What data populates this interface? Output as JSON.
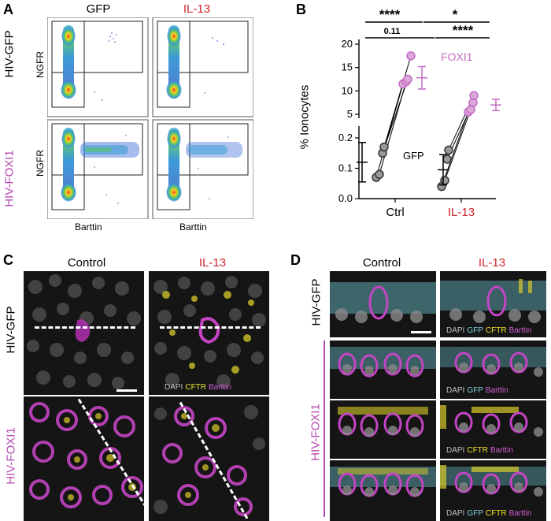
{
  "panels": {
    "A": "A",
    "B": "B",
    "C": "C",
    "D": "D"
  },
  "panel_a": {
    "col_headers": [
      "GFP",
      "IL-13"
    ],
    "row_labels": [
      "HIV-GFP",
      "HIV-FOXI1"
    ],
    "y_axis": "NGFR",
    "x_axis": "Barttin"
  },
  "chart_data": {
    "type": "scatter",
    "ylabel": "% Ionocytes",
    "categories": [
      "Ctrl",
      "IL-13"
    ],
    "broken_axis": true,
    "upper_ylim": [
      5,
      20
    ],
    "upper_ticks": [
      "5",
      "10",
      "15",
      "20"
    ],
    "lower_ylim": [
      0.0,
      0.2
    ],
    "lower_ticks": [
      "0.0",
      "0.1",
      "0.2"
    ],
    "series": [
      {
        "name": "GFP",
        "color": "#555555",
        "Ctrl": [
          0.07,
          0.08,
          0.15,
          0.17
        ],
        "IL-13": [
          0.04,
          0.06,
          0.13,
          0.16
        ],
        "mean_sd": {
          "Ctrl": [
            0.12,
            0.065
          ],
          "IL-13": [
            0.095,
            0.05
          ]
        }
      },
      {
        "name": "FOXI1",
        "color": "#c46cc4",
        "Ctrl": [
          11.5,
          12.0,
          12.5,
          17.5
        ],
        "IL-13": [
          5.5,
          6.0,
          7.5,
          9.0
        ],
        "mean_sd": {
          "Ctrl": [
            12.8,
            2.4
          ],
          "IL-13": [
            7.0,
            1.2
          ]
        }
      }
    ],
    "significance": [
      {
        "label": "****",
        "from": "Ctrl GFP",
        "to": "Ctrl FOXI1"
      },
      {
        "label": "*",
        "from": "Ctrl FOXI1",
        "to": "IL-13 FOXI1"
      },
      {
        "label": "0.11",
        "from": "Ctrl GFP",
        "to": "IL-13 GFP"
      },
      {
        "label": "****",
        "from": "IL-13 GFP",
        "to": "IL-13 FOXI1"
      }
    ]
  },
  "panel_c": {
    "col_headers": [
      "Control",
      "IL-13"
    ],
    "row_labels": [
      "HIV-GFP",
      "HIV-FOXI1"
    ],
    "stain": [
      "DAPI",
      "CFTR",
      "Barttin"
    ]
  },
  "panel_d": {
    "col_headers": [
      "Control",
      "IL-13"
    ],
    "row_labels": [
      "HIV-GFP",
      "HIV-FOXI1"
    ],
    "stains": [
      [
        "DAPI",
        "GFP",
        "CFTR",
        "Barttin"
      ],
      [
        "DAPI",
        "GFP",
        "Barttin"
      ],
      [
        "DAPI",
        "CFTR",
        "Barttin"
      ],
      [
        "DAPI",
        "GFP",
        "CFTR",
        "Barttin"
      ]
    ]
  },
  "colors": {
    "red": "#d0262d",
    "magenta": "#b548b3",
    "gray": "#555555"
  }
}
